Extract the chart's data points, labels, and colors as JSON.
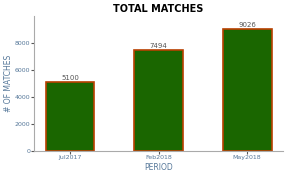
{
  "categories": [
    "Jul2017",
    "Feb2018",
    "May2018"
  ],
  "values": [
    5100,
    7494,
    9026
  ],
  "bar_color": "#1a6600",
  "bar_edgecolor": "#b84000",
  "bar_linewidth": 1.2,
  "title": "TOTAL MATCHES",
  "xlabel": "PERIOD",
  "ylabel": "# OF MATCHES",
  "ylim": [
    0,
    10000
  ],
  "yticks": [
    0,
    2000,
    4000,
    6000,
    8000
  ],
  "title_fontsize": 7,
  "label_fontsize": 5.5,
  "tick_fontsize": 4.5,
  "annotation_fontsize": 5,
  "background_color": "#ffffff"
}
